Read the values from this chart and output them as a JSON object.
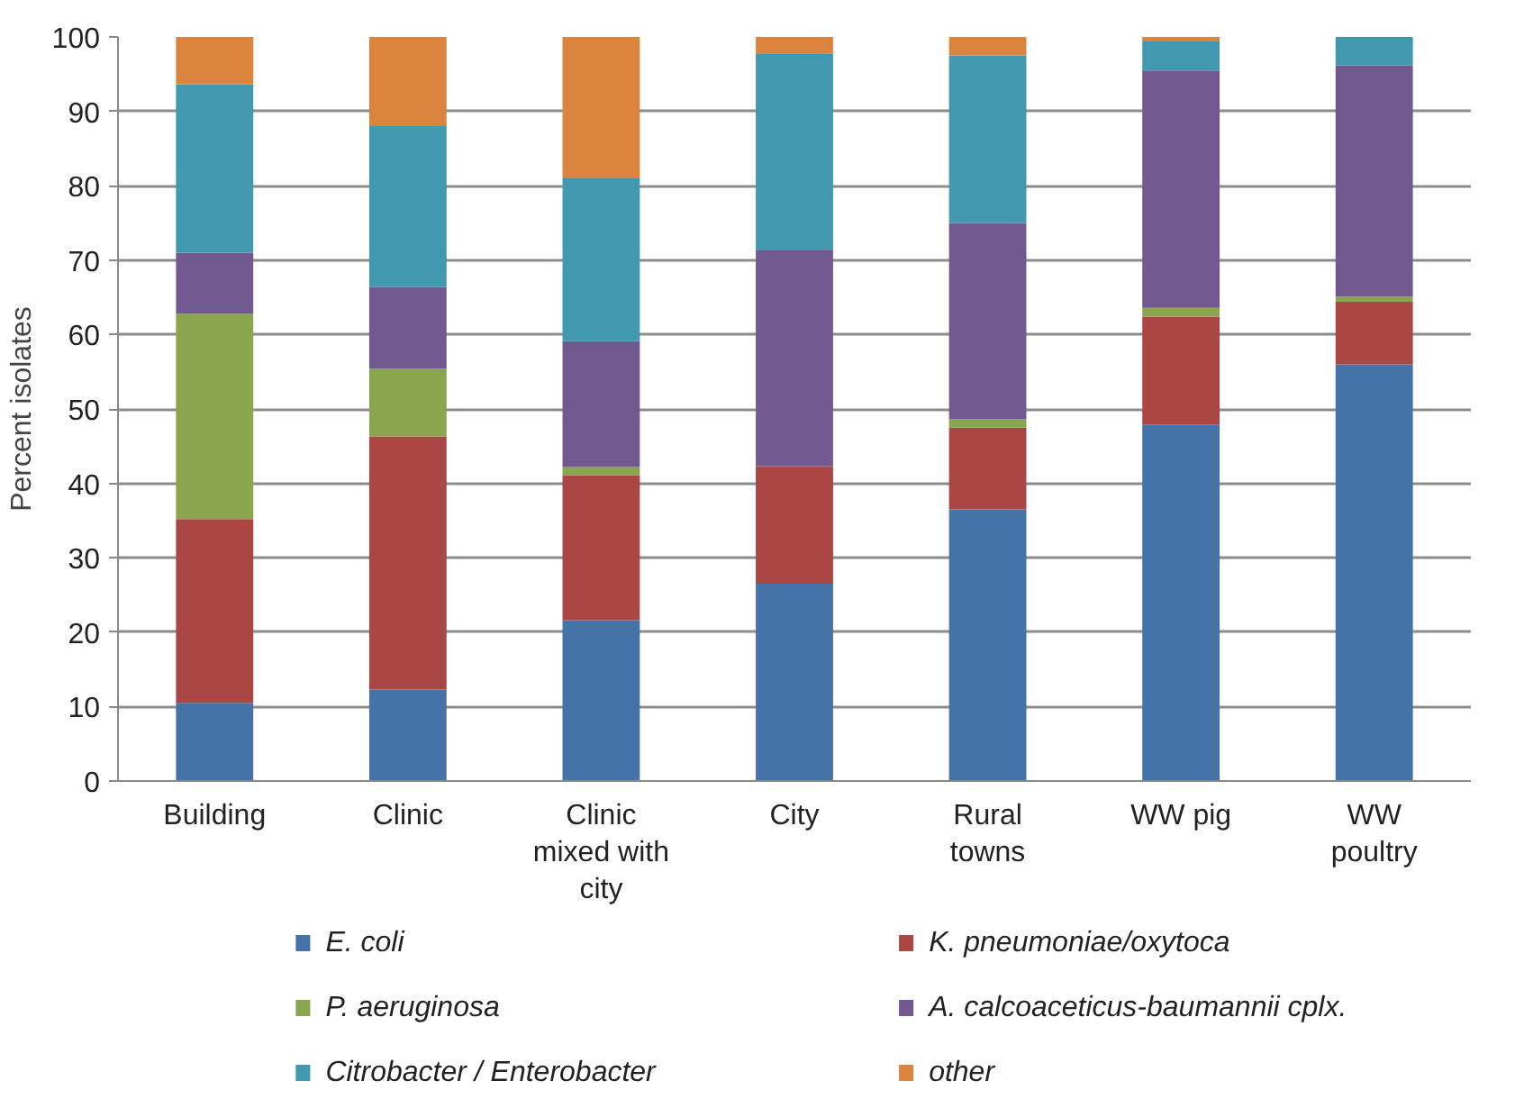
{
  "chart_data": {
    "type": "bar",
    "stacked": true,
    "ylabel": "Percent isolates",
    "categories": [
      "Building",
      "Clinic",
      "Clinic\nmixed with\ncity",
      "City",
      "Rural\ntowns",
      "WW pig",
      "WW\npoultry"
    ],
    "series": [
      {
        "name": "E. coli",
        "color": "#4572a7",
        "values": [
          10.5,
          12.3,
          21.6,
          26.5,
          36.5,
          47.9,
          56.0
        ]
      },
      {
        "name": "K. pneumoniae/oxytoca",
        "color": "#aa4643",
        "values": [
          24.7,
          34.0,
          19.5,
          15.8,
          11.0,
          14.5,
          8.4
        ]
      },
      {
        "name": "P. aeruginosa",
        "color": "#89a54e",
        "values": [
          27.6,
          9.1,
          1.1,
          0,
          1.1,
          1.2,
          0.7
        ]
      },
      {
        "name": "A. calcoaceticus-baumannii cplx.",
        "color": "#71588f",
        "values": [
          8.2,
          11.0,
          16.9,
          29.0,
          26.4,
          31.9,
          31.1
        ]
      },
      {
        "name": "Citrobacter / Enterobacter",
        "color": "#4198af",
        "values": [
          22.6,
          21.6,
          21.9,
          26.5,
          22.5,
          3.9,
          3.8
        ]
      },
      {
        "name": "other",
        "color": "#db843d",
        "values": [
          6.4,
          12.0,
          19.0,
          2.2,
          2.5,
          0.6,
          0
        ]
      }
    ],
    "ylim": [
      0,
      100
    ],
    "yticks": [
      0,
      10,
      20,
      30,
      40,
      50,
      60,
      70,
      80,
      90,
      100
    ],
    "grid": "y",
    "legend": "bottom"
  }
}
